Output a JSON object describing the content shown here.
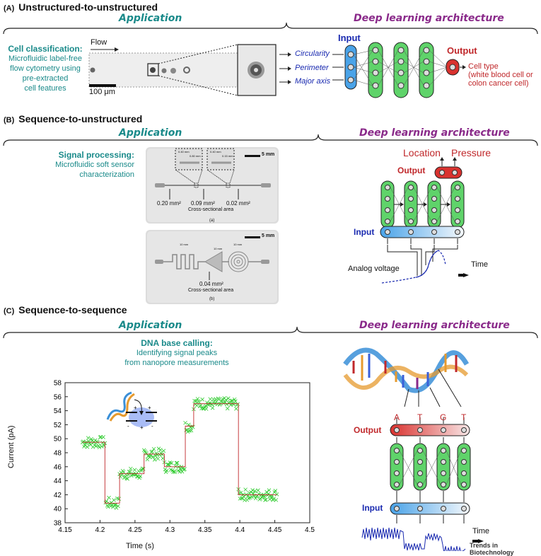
{
  "sectionA": {
    "tag": "(A)",
    "title": "Unstructured-to-unstructured",
    "app_header": "Application",
    "arch_header": "Deep learning architecture",
    "cell_class_title": "Cell classification:",
    "cell_class_desc": [
      "Microfluidic label-free",
      "flow cytometry using",
      "pre-extracted",
      "cell features"
    ],
    "flow_label": "Flow",
    "scale_label": "100 μm",
    "inputs": [
      "Circularity",
      "Perimeter",
      "Major axis"
    ],
    "input_label": "Input",
    "output_label": "Output",
    "output_desc": [
      "Cell type",
      "(white blood cell or",
      "colon cancer cell)"
    ]
  },
  "sectionB": {
    "tag": "(B)",
    "title": "Sequence-to-unstructured",
    "app_header": "Application",
    "arch_header": "Deep learning architecture",
    "signal_title": "Signal processing:",
    "signal_desc": [
      "Microfluidic soft sensor",
      "characterization"
    ],
    "scale_5mm_a": "5 mm",
    "scale_5mm_b": "5 mm",
    "areas": [
      "0.20 mm²",
      "0.09 mm²",
      "0.02 mm²"
    ],
    "cross_label_a": "Cross-sectional area",
    "sub_a": "(a)",
    "area_b": "0.04 mm²",
    "cross_label_b": "Cross-sectional area",
    "sub_b": "(b)",
    "dims_b": [
      "10 mm",
      "10 mm",
      "10 mm"
    ],
    "inset_labels": [
      "0.40 mm",
      "0.80 mm",
      "0.40 mm",
      "0.15 mm"
    ],
    "location_label": "Location",
    "pressure_label": "Pressure",
    "output_label": "Output",
    "input_label": "Input",
    "analog_label": "Analog voltage",
    "time_label": "Time"
  },
  "sectionC": {
    "tag": "(C)",
    "title": "Sequence-to-sequence",
    "app_header": "Application",
    "arch_header": "Deep learning architecture",
    "dna_title": "DNA base calling:",
    "dna_desc": [
      "Identifying signal peaks",
      "from nanopore measurements"
    ],
    "bases": [
      "A",
      "T",
      "G",
      "T"
    ],
    "output_label": "Output",
    "input_label": "Input",
    "time_label": "Time"
  },
  "chart_data": {
    "type": "scatter",
    "xlabel": "Time (s)",
    "ylabel": "Current (pA)",
    "xlim": [
      4.15,
      4.5
    ],
    "ylim": [
      38,
      58
    ],
    "xticks": [
      "4.15",
      "4.2",
      "4.25",
      "4.3",
      "4.35",
      "4.4",
      "4.45",
      "4.5"
    ],
    "yticks": [
      "38",
      "40",
      "42",
      "44",
      "46",
      "48",
      "50",
      "52",
      "54",
      "56",
      "58"
    ],
    "series": [
      {
        "marker": "x",
        "color": "#33cc33",
        "segments": [
          {
            "x_start": 4.175,
            "x_end": 4.207,
            "level": 49.5
          },
          {
            "x_start": 4.208,
            "x_end": 4.227,
            "level": 40.8
          },
          {
            "x_start": 4.228,
            "x_end": 4.262,
            "level": 45.0
          },
          {
            "x_start": 4.263,
            "x_end": 4.291,
            "level": 47.8
          },
          {
            "x_start": 4.292,
            "x_end": 4.321,
            "level": 46.0
          },
          {
            "x_start": 4.322,
            "x_end": 4.333,
            "level": 51.8
          },
          {
            "x_start": 4.334,
            "x_end": 4.397,
            "level": 55.0
          },
          {
            "x_start": 4.398,
            "x_end": 4.453,
            "level": 42.0
          }
        ]
      },
      {
        "marker": "step-line",
        "color": "#c0282b",
        "x": [
          4.175,
          4.207,
          4.207,
          4.228,
          4.228,
          4.263,
          4.263,
          4.292,
          4.292,
          4.322,
          4.322,
          4.334,
          4.334,
          4.398,
          4.398,
          4.453
        ],
        "y": [
          49.5,
          49.5,
          40.8,
          40.8,
          45.0,
          45.0,
          47.8,
          47.8,
          46.0,
          46.0,
          51.8,
          51.8,
          55.0,
          55.0,
          42.0,
          42.0
        ]
      }
    ],
    "grid": false
  },
  "credit": "Trends in Biotechnology",
  "colors": {
    "teal": "#1a8a8a",
    "purple": "#8a2a8a",
    "blue": "#1a2ab0",
    "red": "#c0282b",
    "green": "#5fd36a"
  }
}
